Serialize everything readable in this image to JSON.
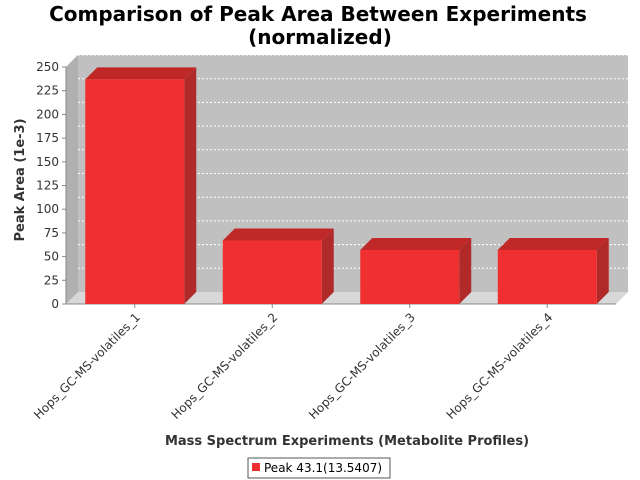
{
  "chart_data": {
    "type": "bar",
    "title_line1": "Comparison of Peak Area Between Experiments",
    "title_line2": "(normalized)",
    "xlabel": "Mass Spectrum Experiments (Metabolite Profiles)",
    "ylabel": "Peak Area (1e-3)",
    "categories": [
      "Hops_GC-MS-volatiles_1",
      "Hops_GC-MS-volatiles_2",
      "Hops_GC-MS-volatiles_3",
      "Hops_GC-MS-volatiles_4"
    ],
    "series": [
      {
        "name": "Peak 43.1(13.5407)",
        "color": "#f03030",
        "values": [
          237,
          67,
          57,
          57
        ]
      }
    ],
    "ylim": [
      0,
      250
    ],
    "yticks": [
      0,
      25,
      50,
      75,
      100,
      125,
      150,
      175,
      200,
      225,
      250
    ],
    "grid": true,
    "legend_position": "bottom-center",
    "plot_background": "#c0c0c0"
  }
}
